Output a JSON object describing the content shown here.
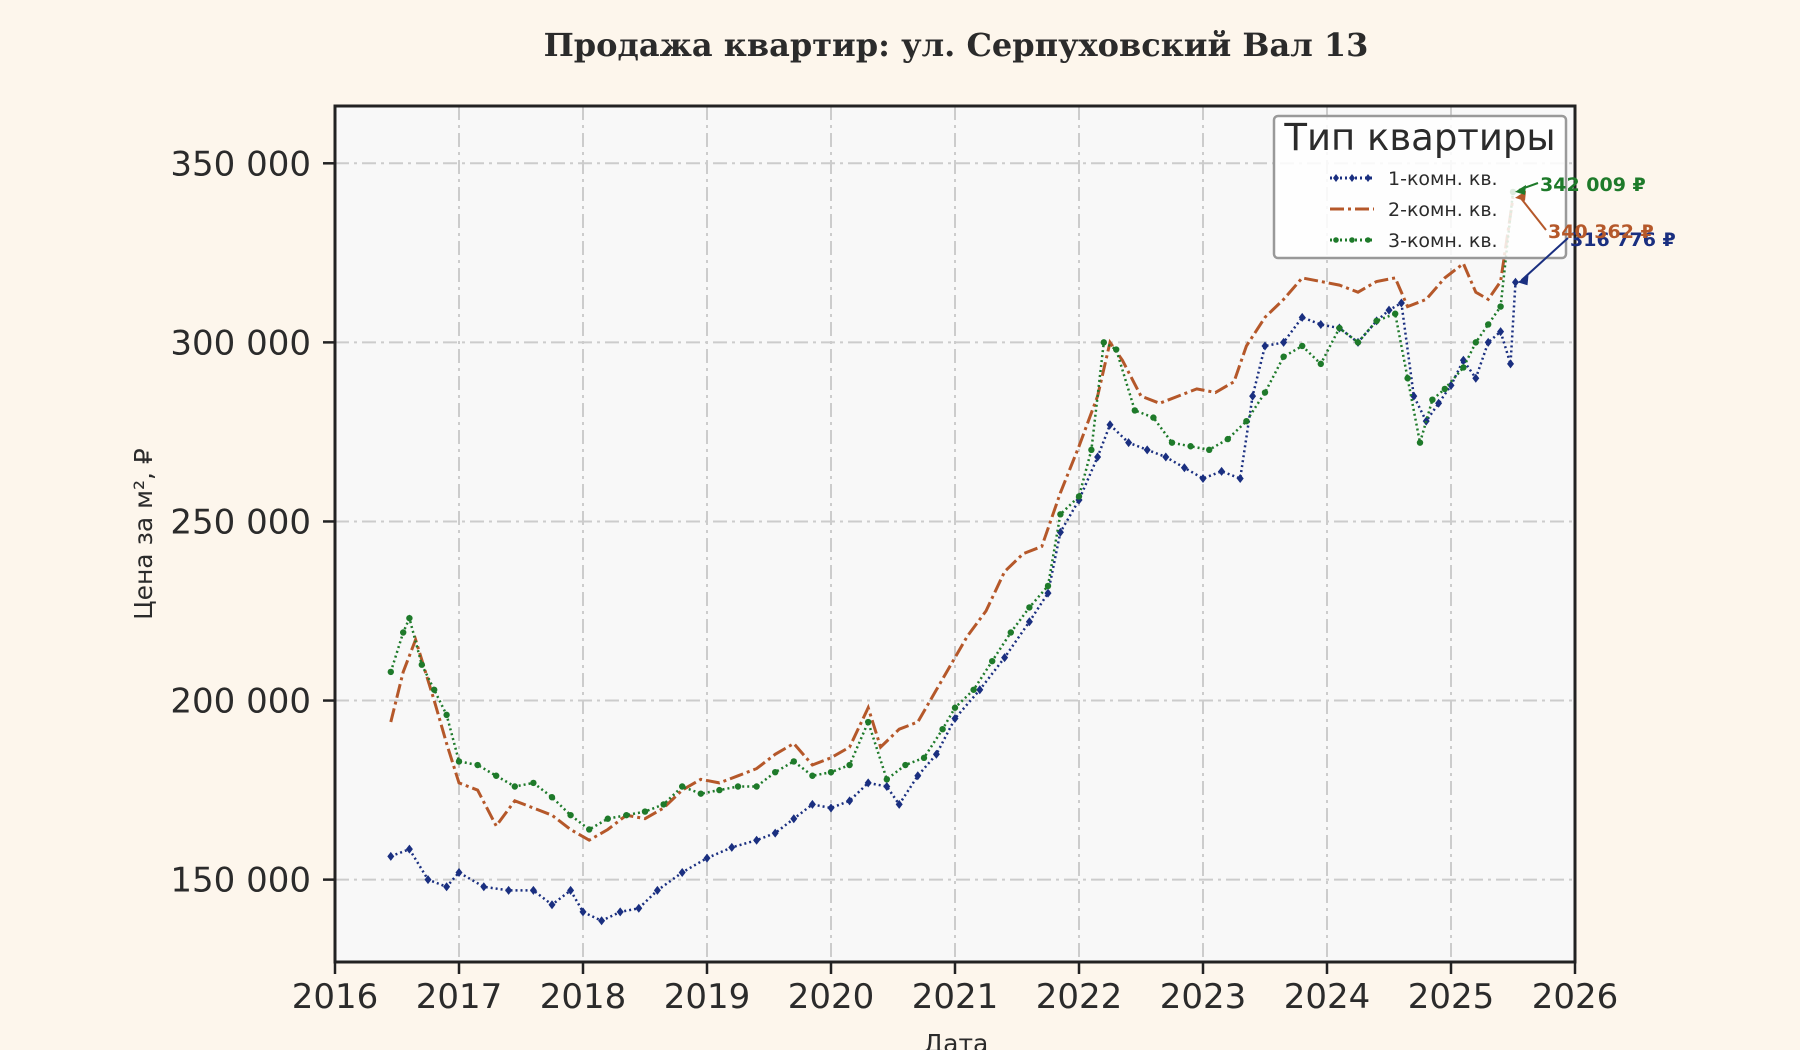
{
  "chart_data": {
    "type": "line",
    "title": "Продажа квартир: ул. Серпуховский Вал 13",
    "xlabel": "Дата",
    "ylabel": "Цена за м², ₽",
    "xlim": [
      2016,
      2026
    ],
    "ylim": [
      127000,
      366000
    ],
    "x_ticks": [
      2016,
      2017,
      2018,
      2019,
      2020,
      2021,
      2022,
      2023,
      2024,
      2025,
      2026
    ],
    "x_tick_labels": [
      "2016",
      "2017",
      "2018",
      "2019",
      "2020",
      "2021",
      "2022",
      "2023",
      "2024",
      "2025",
      "2026"
    ],
    "y_ticks": [
      150000,
      200000,
      250000,
      300000,
      350000
    ],
    "y_tick_labels": [
      "150 000",
      "200 000",
      "250 000",
      "300 000",
      "350 000"
    ],
    "grid": true,
    "legend": {
      "title": "Тип квартиры",
      "position": "top-right"
    },
    "colors": {
      "background": "#fdf6ec",
      "plot_area": "#f8f8f8",
      "s1": "#1a2f80",
      "s2": "#b5582a",
      "s3": "#1e7a2a"
    },
    "series": [
      {
        "name": "1-комн. кв.",
        "color": "#1a2f80",
        "linestyle": "dotted",
        "marker": "diamond",
        "annotation": "316 776 ₽",
        "points": [
          [
            2016.45,
            156500
          ],
          [
            2016.6,
            158500
          ],
          [
            2016.75,
            150000
          ],
          [
            2016.9,
            148000
          ],
          [
            2017.0,
            152000
          ],
          [
            2017.2,
            148000
          ],
          [
            2017.4,
            147000
          ],
          [
            2017.6,
            147000
          ],
          [
            2017.75,
            143000
          ],
          [
            2017.9,
            147000
          ],
          [
            2018.0,
            141000
          ],
          [
            2018.15,
            138500
          ],
          [
            2018.3,
            141000
          ],
          [
            2018.45,
            142000
          ],
          [
            2018.6,
            147000
          ],
          [
            2018.8,
            152000
          ],
          [
            2019.0,
            156000
          ],
          [
            2019.2,
            159000
          ],
          [
            2019.4,
            161000
          ],
          [
            2019.55,
            163000
          ],
          [
            2019.7,
            167000
          ],
          [
            2019.85,
            171000
          ],
          [
            2020.0,
            170000
          ],
          [
            2020.15,
            172000
          ],
          [
            2020.3,
            177000
          ],
          [
            2020.45,
            176000
          ],
          [
            2020.55,
            171000
          ],
          [
            2020.7,
            179000
          ],
          [
            2020.85,
            185000
          ],
          [
            2021.0,
            195000
          ],
          [
            2021.2,
            203000
          ],
          [
            2021.4,
            212000
          ],
          [
            2021.6,
            222000
          ],
          [
            2021.75,
            230000
          ],
          [
            2021.85,
            247000
          ],
          [
            2022.0,
            256000
          ],
          [
            2022.15,
            268000
          ],
          [
            2022.25,
            277000
          ],
          [
            2022.4,
            272000
          ],
          [
            2022.55,
            270000
          ],
          [
            2022.7,
            268000
          ],
          [
            2022.85,
            265000
          ],
          [
            2023.0,
            262000
          ],
          [
            2023.15,
            264000
          ],
          [
            2023.3,
            262000
          ],
          [
            2023.4,
            285000
          ],
          [
            2023.5,
            299000
          ],
          [
            2023.65,
            300000
          ],
          [
            2023.8,
            307000
          ],
          [
            2023.95,
            305000
          ],
          [
            2024.1,
            304000
          ],
          [
            2024.25,
            300000
          ],
          [
            2024.4,
            306000
          ],
          [
            2024.5,
            309000
          ],
          [
            2024.6,
            311000
          ],
          [
            2024.7,
            285000
          ],
          [
            2024.8,
            278000
          ],
          [
            2024.9,
            283000
          ],
          [
            2025.0,
            288000
          ],
          [
            2025.1,
            295000
          ],
          [
            2025.2,
            290000
          ],
          [
            2025.3,
            300000
          ],
          [
            2025.4,
            303000
          ],
          [
            2025.48,
            294000
          ],
          [
            2025.52,
            316776
          ]
        ]
      },
      {
        "name": "2-комн. кв.",
        "color": "#b5582a",
        "linestyle": "dashdot",
        "marker": "none",
        "annotation": "340 362 ₽",
        "points": [
          [
            2016.45,
            194000
          ],
          [
            2016.55,
            208000
          ],
          [
            2016.65,
            217000
          ],
          [
            2016.8,
            200000
          ],
          [
            2016.9,
            188000
          ],
          [
            2017.0,
            177000
          ],
          [
            2017.15,
            175000
          ],
          [
            2017.3,
            165000
          ],
          [
            2017.45,
            172000
          ],
          [
            2017.6,
            170000
          ],
          [
            2017.75,
            168000
          ],
          [
            2017.9,
            164000
          ],
          [
            2018.05,
            161000
          ],
          [
            2018.2,
            164000
          ],
          [
            2018.35,
            168000
          ],
          [
            2018.5,
            167000
          ],
          [
            2018.65,
            170000
          ],
          [
            2018.8,
            175000
          ],
          [
            2018.95,
            178000
          ],
          [
            2019.1,
            177000
          ],
          [
            2019.25,
            179000
          ],
          [
            2019.4,
            181000
          ],
          [
            2019.55,
            185000
          ],
          [
            2019.7,
            188000
          ],
          [
            2019.85,
            182000
          ],
          [
            2020.0,
            184000
          ],
          [
            2020.15,
            187000
          ],
          [
            2020.3,
            198000
          ],
          [
            2020.4,
            187000
          ],
          [
            2020.55,
            192000
          ],
          [
            2020.7,
            194000
          ],
          [
            2020.85,
            203000
          ],
          [
            2021.0,
            212000
          ],
          [
            2021.1,
            218000
          ],
          [
            2021.25,
            225000
          ],
          [
            2021.4,
            236000
          ],
          [
            2021.55,
            241000
          ],
          [
            2021.7,
            243000
          ],
          [
            2021.85,
            258000
          ],
          [
            2022.0,
            271000
          ],
          [
            2022.15,
            285000
          ],
          [
            2022.25,
            300000
          ],
          [
            2022.35,
            295000
          ],
          [
            2022.5,
            285000
          ],
          [
            2022.65,
            283000
          ],
          [
            2022.8,
            285000
          ],
          [
            2022.95,
            287000
          ],
          [
            2023.1,
            286000
          ],
          [
            2023.25,
            289000
          ],
          [
            2023.35,
            299000
          ],
          [
            2023.5,
            307000
          ],
          [
            2023.65,
            312000
          ],
          [
            2023.8,
            318000
          ],
          [
            2023.95,
            317000
          ],
          [
            2024.1,
            316000
          ],
          [
            2024.25,
            314000
          ],
          [
            2024.4,
            317000
          ],
          [
            2024.55,
            318000
          ],
          [
            2024.65,
            310000
          ],
          [
            2024.8,
            312000
          ],
          [
            2024.95,
            318000
          ],
          [
            2025.1,
            322000
          ],
          [
            2025.2,
            314000
          ],
          [
            2025.3,
            312000
          ],
          [
            2025.4,
            317000
          ],
          [
            2025.5,
            340362
          ]
        ]
      },
      {
        "name": "3-комн. кв.",
        "color": "#1e7a2a",
        "linestyle": "dotted",
        "marker": "circle",
        "annotation": "342 009 ₽",
        "points": [
          [
            2016.45,
            208000
          ],
          [
            2016.55,
            219000
          ],
          [
            2016.6,
            223000
          ],
          [
            2016.7,
            210000
          ],
          [
            2016.8,
            203000
          ],
          [
            2016.9,
            196000
          ],
          [
            2017.0,
            183000
          ],
          [
            2017.15,
            182000
          ],
          [
            2017.3,
            179000
          ],
          [
            2017.45,
            176000
          ],
          [
            2017.6,
            177000
          ],
          [
            2017.75,
            173000
          ],
          [
            2017.9,
            168000
          ],
          [
            2018.05,
            164000
          ],
          [
            2018.2,
            167000
          ],
          [
            2018.35,
            168000
          ],
          [
            2018.5,
            169000
          ],
          [
            2018.65,
            171000
          ],
          [
            2018.8,
            176000
          ],
          [
            2018.95,
            174000
          ],
          [
            2019.1,
            175000
          ],
          [
            2019.25,
            176000
          ],
          [
            2019.4,
            176000
          ],
          [
            2019.55,
            180000
          ],
          [
            2019.7,
            183000
          ],
          [
            2019.85,
            179000
          ],
          [
            2020.0,
            180000
          ],
          [
            2020.15,
            182000
          ],
          [
            2020.3,
            194000
          ],
          [
            2020.45,
            178000
          ],
          [
            2020.6,
            182000
          ],
          [
            2020.75,
            184000
          ],
          [
            2020.9,
            192000
          ],
          [
            2021.0,
            198000
          ],
          [
            2021.15,
            203000
          ],
          [
            2021.3,
            211000
          ],
          [
            2021.45,
            219000
          ],
          [
            2021.6,
            226000
          ],
          [
            2021.75,
            232000
          ],
          [
            2021.85,
            252000
          ],
          [
            2022.0,
            257000
          ],
          [
            2022.1,
            270000
          ],
          [
            2022.2,
            300000
          ],
          [
            2022.3,
            298000
          ],
          [
            2022.45,
            281000
          ],
          [
            2022.6,
            279000
          ],
          [
            2022.75,
            272000
          ],
          [
            2022.9,
            271000
          ],
          [
            2023.05,
            270000
          ],
          [
            2023.2,
            273000
          ],
          [
            2023.35,
            278000
          ],
          [
            2023.5,
            286000
          ],
          [
            2023.65,
            296000
          ],
          [
            2023.8,
            299000
          ],
          [
            2023.95,
            294000
          ],
          [
            2024.1,
            304000
          ],
          [
            2024.25,
            300000
          ],
          [
            2024.4,
            306000
          ],
          [
            2024.55,
            308000
          ],
          [
            2024.65,
            290000
          ],
          [
            2024.75,
            272000
          ],
          [
            2024.85,
            284000
          ],
          [
            2024.95,
            287000
          ],
          [
            2025.1,
            293000
          ],
          [
            2025.2,
            300000
          ],
          [
            2025.3,
            305000
          ],
          [
            2025.4,
            310000
          ],
          [
            2025.5,
            342009
          ]
        ]
      }
    ]
  }
}
